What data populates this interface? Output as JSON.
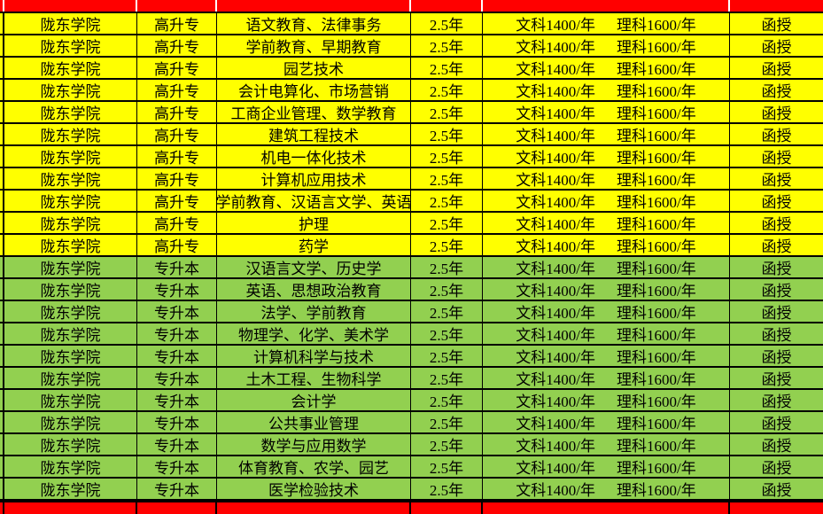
{
  "colors": {
    "band_yellow": "#FFFF00",
    "band_green": "#92D050",
    "separator_red": "#FF0000",
    "gridline": "#000000"
  },
  "table": {
    "rows": [
      {
        "school": "陇东学院",
        "level": "高升专",
        "majors": "语文教育、法律事务",
        "duration": "2.5年",
        "tuition_arts": "文科1400/年",
        "tuition_science": "理科1600/年",
        "mode": "函授",
        "band": "yellow"
      },
      {
        "school": "陇东学院",
        "level": "高升专",
        "majors": "学前教育、早期教育",
        "duration": "2.5年",
        "tuition_arts": "文科1400/年",
        "tuition_science": "理科1600/年",
        "mode": "函授",
        "band": "yellow"
      },
      {
        "school": "陇东学院",
        "level": "高升专",
        "majors": "园艺技术",
        "duration": "2.5年",
        "tuition_arts": "文科1400/年",
        "tuition_science": "理科1600/年",
        "mode": "函授",
        "band": "yellow"
      },
      {
        "school": "陇东学院",
        "level": "高升专",
        "majors": "会计电算化、市场营销",
        "duration": "2.5年",
        "tuition_arts": "文科1400/年",
        "tuition_science": "理科1600/年",
        "mode": "函授",
        "band": "yellow"
      },
      {
        "school": "陇东学院",
        "level": "高升专",
        "majors": "工商企业管理、数学教育",
        "duration": "2.5年",
        "tuition_arts": "文科1400/年",
        "tuition_science": "理科1600/年",
        "mode": "函授",
        "band": "yellow"
      },
      {
        "school": "陇东学院",
        "level": "高升专",
        "majors": "建筑工程技术",
        "duration": "2.5年",
        "tuition_arts": "文科1400/年",
        "tuition_science": "理科1600/年",
        "mode": "函授",
        "band": "yellow"
      },
      {
        "school": "陇东学院",
        "level": "高升专",
        "majors": "机电一体化技术",
        "duration": "2.5年",
        "tuition_arts": "文科1400/年",
        "tuition_science": "理科1600/年",
        "mode": "函授",
        "band": "yellow"
      },
      {
        "school": "陇东学院",
        "level": "高升专",
        "majors": "计算机应用技术",
        "duration": "2.5年",
        "tuition_arts": "文科1400/年",
        "tuition_science": "理科1600/年",
        "mode": "函授",
        "band": "yellow"
      },
      {
        "school": "陇东学院",
        "level": "高升专",
        "majors": "学前教育、汉语言文学、英语",
        "duration": "2.5年",
        "tuition_arts": "文科1400/年",
        "tuition_science": "理科1600/年",
        "mode": "函授",
        "band": "yellow"
      },
      {
        "school": "陇东学院",
        "level": "高升专",
        "majors": "护理",
        "duration": "2.5年",
        "tuition_arts": "文科1400/年",
        "tuition_science": "理科1600/年",
        "mode": "函授",
        "band": "yellow"
      },
      {
        "school": "陇东学院",
        "level": "高升专",
        "majors": "药学",
        "duration": "2.5年",
        "tuition_arts": "文科1400/年",
        "tuition_science": "理科1600/年",
        "mode": "函授",
        "band": "yellow"
      },
      {
        "school": "陇东学院",
        "level": "专升本",
        "majors": "汉语言文学、历史学",
        "duration": "2.5年",
        "tuition_arts": "文科1400/年",
        "tuition_science": "理科1600/年",
        "mode": "函授",
        "band": "green"
      },
      {
        "school": "陇东学院",
        "level": "专升本",
        "majors": "英语、思想政治教育",
        "duration": "2.5年",
        "tuition_arts": "文科1400/年",
        "tuition_science": "理科1600/年",
        "mode": "函授",
        "band": "green"
      },
      {
        "school": "陇东学院",
        "level": "专升本",
        "majors": "法学、学前教育",
        "duration": "2.5年",
        "tuition_arts": "文科1400/年",
        "tuition_science": "理科1600/年",
        "mode": "函授",
        "band": "green"
      },
      {
        "school": "陇东学院",
        "level": "专升本",
        "majors": "物理学、化学、美术学",
        "duration": "2.5年",
        "tuition_arts": "文科1400/年",
        "tuition_science": "理科1600/年",
        "mode": "函授",
        "band": "green"
      },
      {
        "school": "陇东学院",
        "level": "专升本",
        "majors": "计算机科学与技术",
        "duration": "2.5年",
        "tuition_arts": "文科1400/年",
        "tuition_science": "理科1600/年",
        "mode": "函授",
        "band": "green"
      },
      {
        "school": "陇东学院",
        "level": "专升本",
        "majors": "土木工程、生物科学",
        "duration": "2.5年",
        "tuition_arts": "文科1400/年",
        "tuition_science": "理科1600/年",
        "mode": "函授",
        "band": "green"
      },
      {
        "school": "陇东学院",
        "level": "专升本",
        "majors": "会计学",
        "duration": "2.5年",
        "tuition_arts": "文科1400/年",
        "tuition_science": "理科1600/年",
        "mode": "函授",
        "band": "green"
      },
      {
        "school": "陇东学院",
        "level": "专升本",
        "majors": "公共事业管理",
        "duration": "2.5年",
        "tuition_arts": "文科1400/年",
        "tuition_science": "理科1600/年",
        "mode": "函授",
        "band": "green"
      },
      {
        "school": "陇东学院",
        "level": "专升本",
        "majors": "数学与应用数学",
        "duration": "2.5年",
        "tuition_arts": "文科1400/年",
        "tuition_science": "理科1600/年",
        "mode": "函授",
        "band": "green"
      },
      {
        "school": "陇东学院",
        "level": "专升本",
        "majors": "体育教育、农学、园艺",
        "duration": "2.5年",
        "tuition_arts": "文科1400/年",
        "tuition_science": "理科1600/年",
        "mode": "函授",
        "band": "green"
      },
      {
        "school": "陇东学院",
        "level": "专升本",
        "majors": "医学检验技术",
        "duration": "2.5年",
        "tuition_arts": "文科1400/年",
        "tuition_science": "理科1600/年",
        "mode": "函授",
        "band": "green"
      }
    ]
  }
}
